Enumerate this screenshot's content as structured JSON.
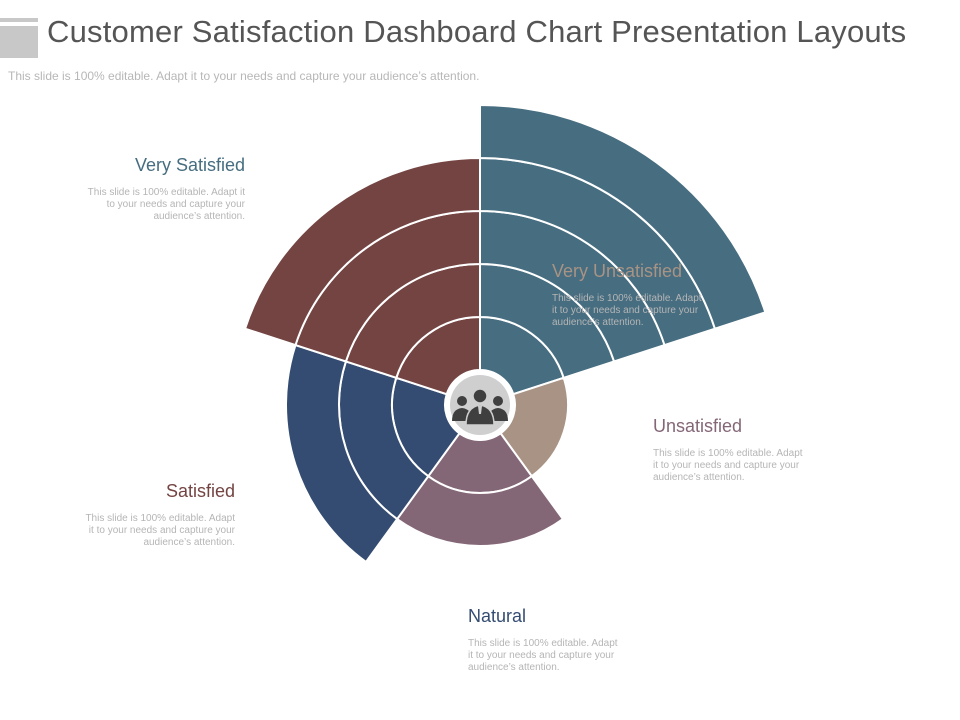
{
  "header": {
    "title": "Customer Satisfaction Dashboard Chart Presentation Layouts",
    "subtitle": "This slide is 100% editable. Adapt it to your needs and capture your audience’s attention."
  },
  "center_icon": "people-group-icon",
  "segments": [
    {
      "id": "very-satisfied",
      "heading": "Very Satisfied",
      "description": "This slide is 100% editable. Adapt it\nto your needs and capture your\naudience’s attention.",
      "color": "#466d80",
      "rings": 5
    },
    {
      "id": "very-unsatisfied",
      "heading": "Very Unsatisfied",
      "description": "This slide is 100% editable. Adapt\nit to your needs and capture your\naudience’s attention.",
      "color": "#a89384",
      "rings": 1
    },
    {
      "id": "unsatisfied",
      "heading": "Unsatisfied",
      "description": "This slide is 100% editable. Adapt\nit to your needs and capture your\naudience’s attention.",
      "color": "#846777",
      "rings": 2
    },
    {
      "id": "natural",
      "heading": "Natural",
      "description": "This slide is 100% editable. Adapt\nit to your needs and capture your\naudience’s attention.",
      "color": "#344c72",
      "rings": 3
    },
    {
      "id": "satisfied",
      "heading": "Satisfied",
      "description": "This slide is 100% editable. Adapt\nit to your needs and capture your\naudience’s attention.",
      "color": "#734442",
      "rings": 4
    }
  ]
}
